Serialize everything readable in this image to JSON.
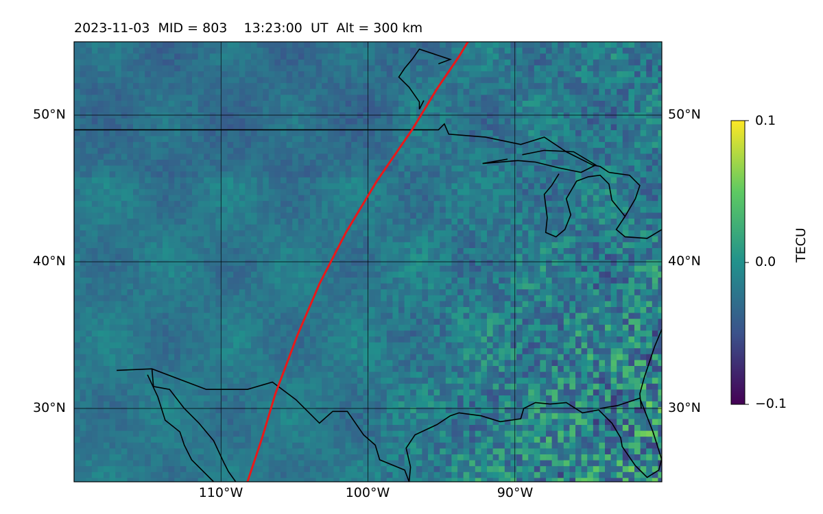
{
  "figure": {
    "title": "2023-11-03  MID = 803    13:23:00  UT  Alt = 300 km"
  },
  "map": {
    "projection": "PlateCarree",
    "lon_range": [
      -120,
      -80
    ],
    "lat_range": [
      25,
      55
    ],
    "lat_ticks": [
      {
        "value": 50,
        "label": "50°N"
      },
      {
        "value": 40,
        "label": "40°N"
      },
      {
        "value": 30,
        "label": "30°N"
      }
    ],
    "lon_ticks": [
      {
        "value": -110,
        "label": "110°W"
      },
      {
        "value": -100,
        "label": "100°W"
      },
      {
        "value": -90,
        "label": "90°W"
      }
    ],
    "gridlines": true,
    "coastlines": true,
    "eclipse_path_color": "#e8191a",
    "eclipse_path": [
      [
        -108.2,
        25
      ],
      [
        -107.2,
        28
      ],
      [
        -106.3,
        31
      ],
      [
        -104.8,
        35
      ],
      [
        -103.3,
        38.5
      ],
      [
        -101.5,
        42
      ],
      [
        -99.4,
        45.5
      ],
      [
        -97,
        49
      ],
      [
        -95.3,
        51.8
      ],
      [
        -93.8,
        54
      ],
      [
        -93.2,
        55
      ]
    ]
  },
  "colorbar": {
    "label": "TECU",
    "colormap": "viridis",
    "vmin": -0.1,
    "vmax": 0.1,
    "ticks": [
      {
        "value": 0.1,
        "label": "0.1"
      },
      {
        "value": 0.0,
        "label": "0.0"
      },
      {
        "value": -0.1,
        "label": "−0.1"
      }
    ]
  }
}
